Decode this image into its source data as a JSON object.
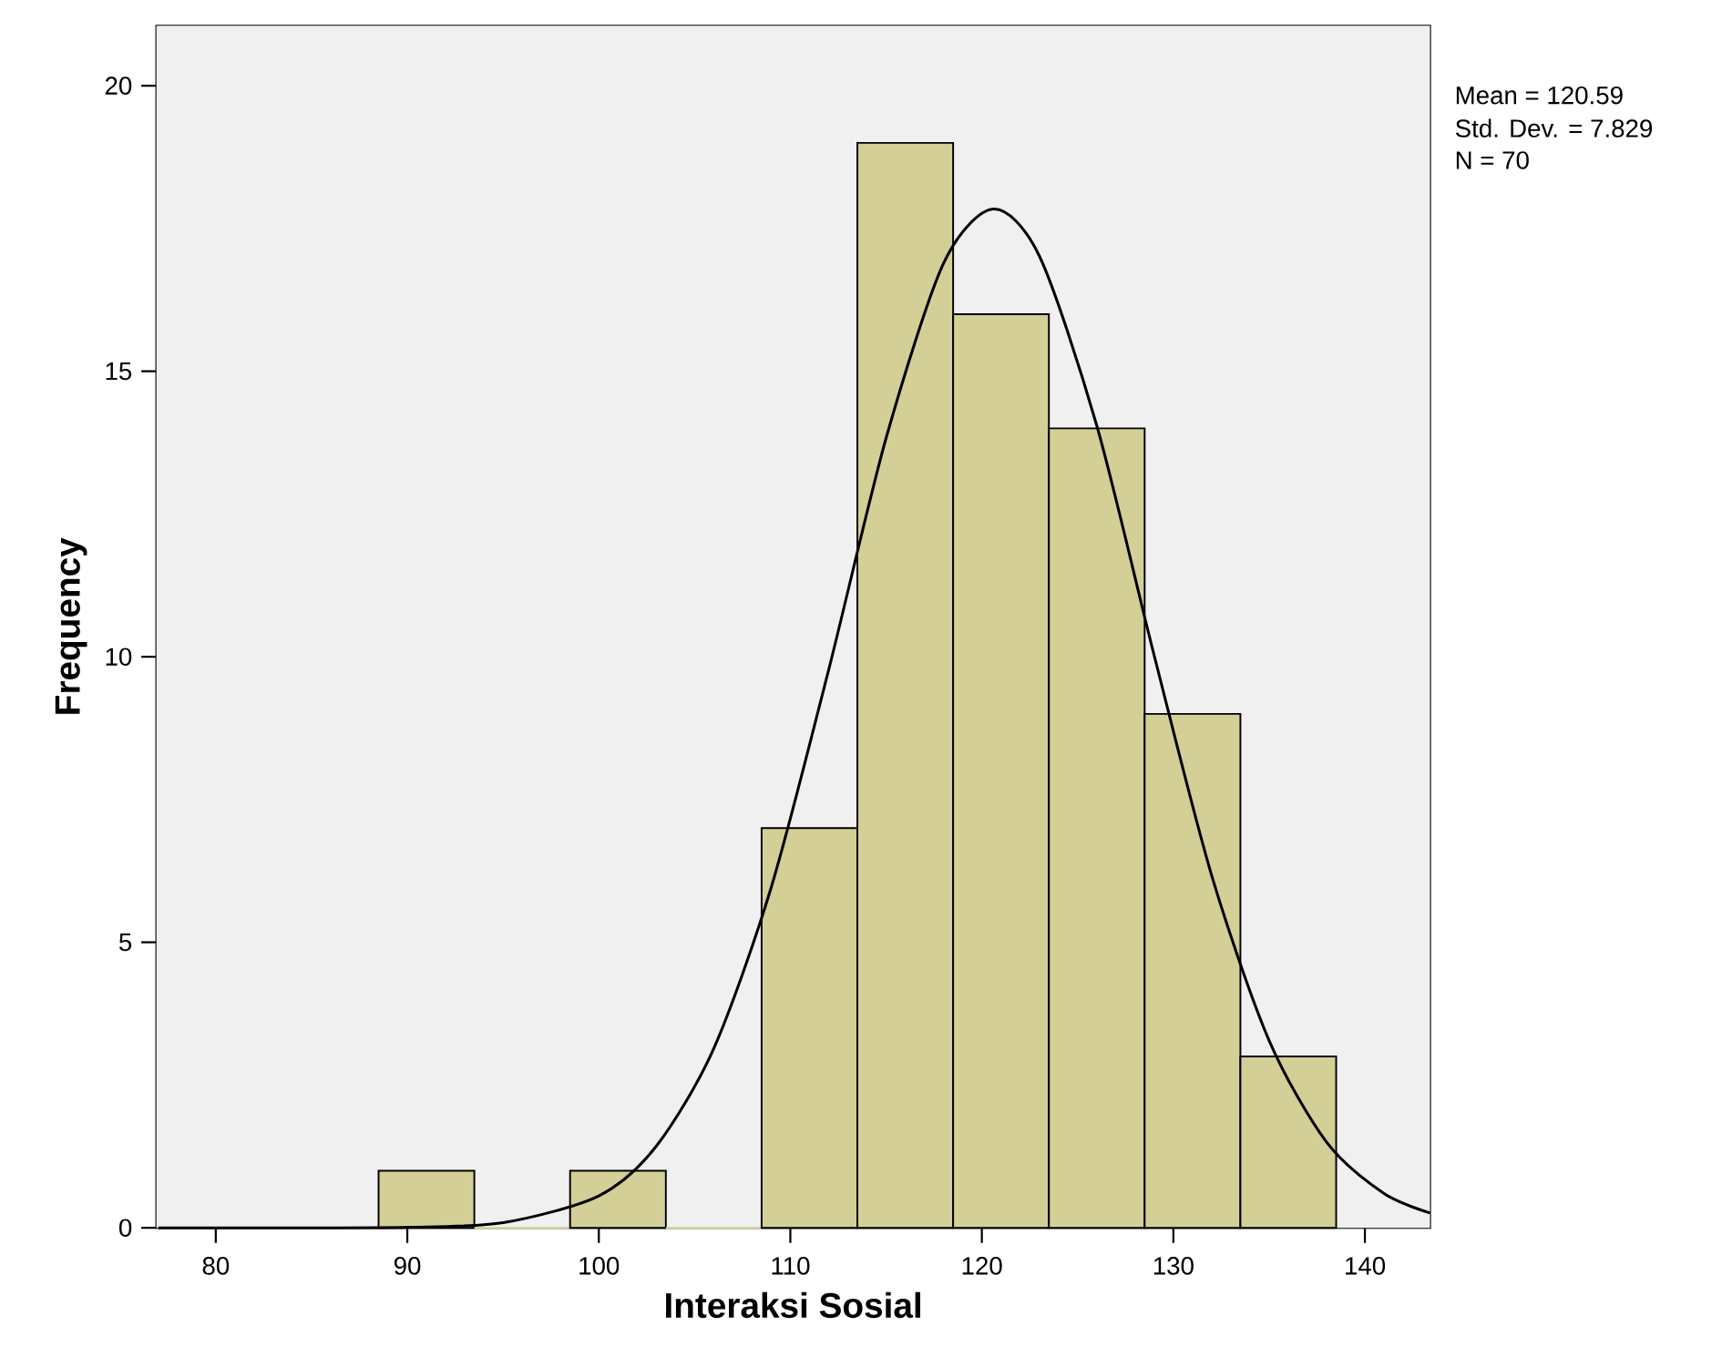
{
  "chart_data": {
    "type": "histogram",
    "xlabel": "Interaksi Sosial",
    "ylabel": "Frequency",
    "bins": [
      88.5,
      93.5,
      98.5,
      103.5,
      108.5,
      113.5,
      118.5,
      123.5,
      128.5,
      133.5,
      138.5
    ],
    "values": [
      1,
      0,
      1,
      0,
      7,
      19,
      16,
      14,
      9,
      3
    ],
    "color": "#d3cf97",
    "series": [
      {
        "type": "line",
        "color": "#000000",
        "x": [
          77,
          85,
          90,
          95,
          100,
          103,
          106,
          109,
          112,
          115,
          118,
          120.59,
          123,
          126,
          129,
          132,
          135,
          138,
          141,
          143.4
        ],
        "values": [
          0,
          0,
          0.01,
          0.09,
          0.56,
          1.43,
          3.14,
          5.96,
          9.77,
          13.83,
          16.89,
          17.84,
          17.02,
          14.05,
          10.02,
          6.17,
          3.28,
          1.5,
          0.6,
          0.26
        ]
      }
    ],
    "xlim": [
      76.9,
      143.4
    ],
    "ylim": [
      0,
      21.05
    ],
    "xticks": [
      80,
      90,
      100,
      110,
      120,
      130,
      140
    ],
    "yticks": [
      0,
      5,
      10,
      15,
      20
    ],
    "annotations": [
      "Mean = 120.59",
      "Std. Dev. = 7.829",
      "N = 70"
    ]
  }
}
